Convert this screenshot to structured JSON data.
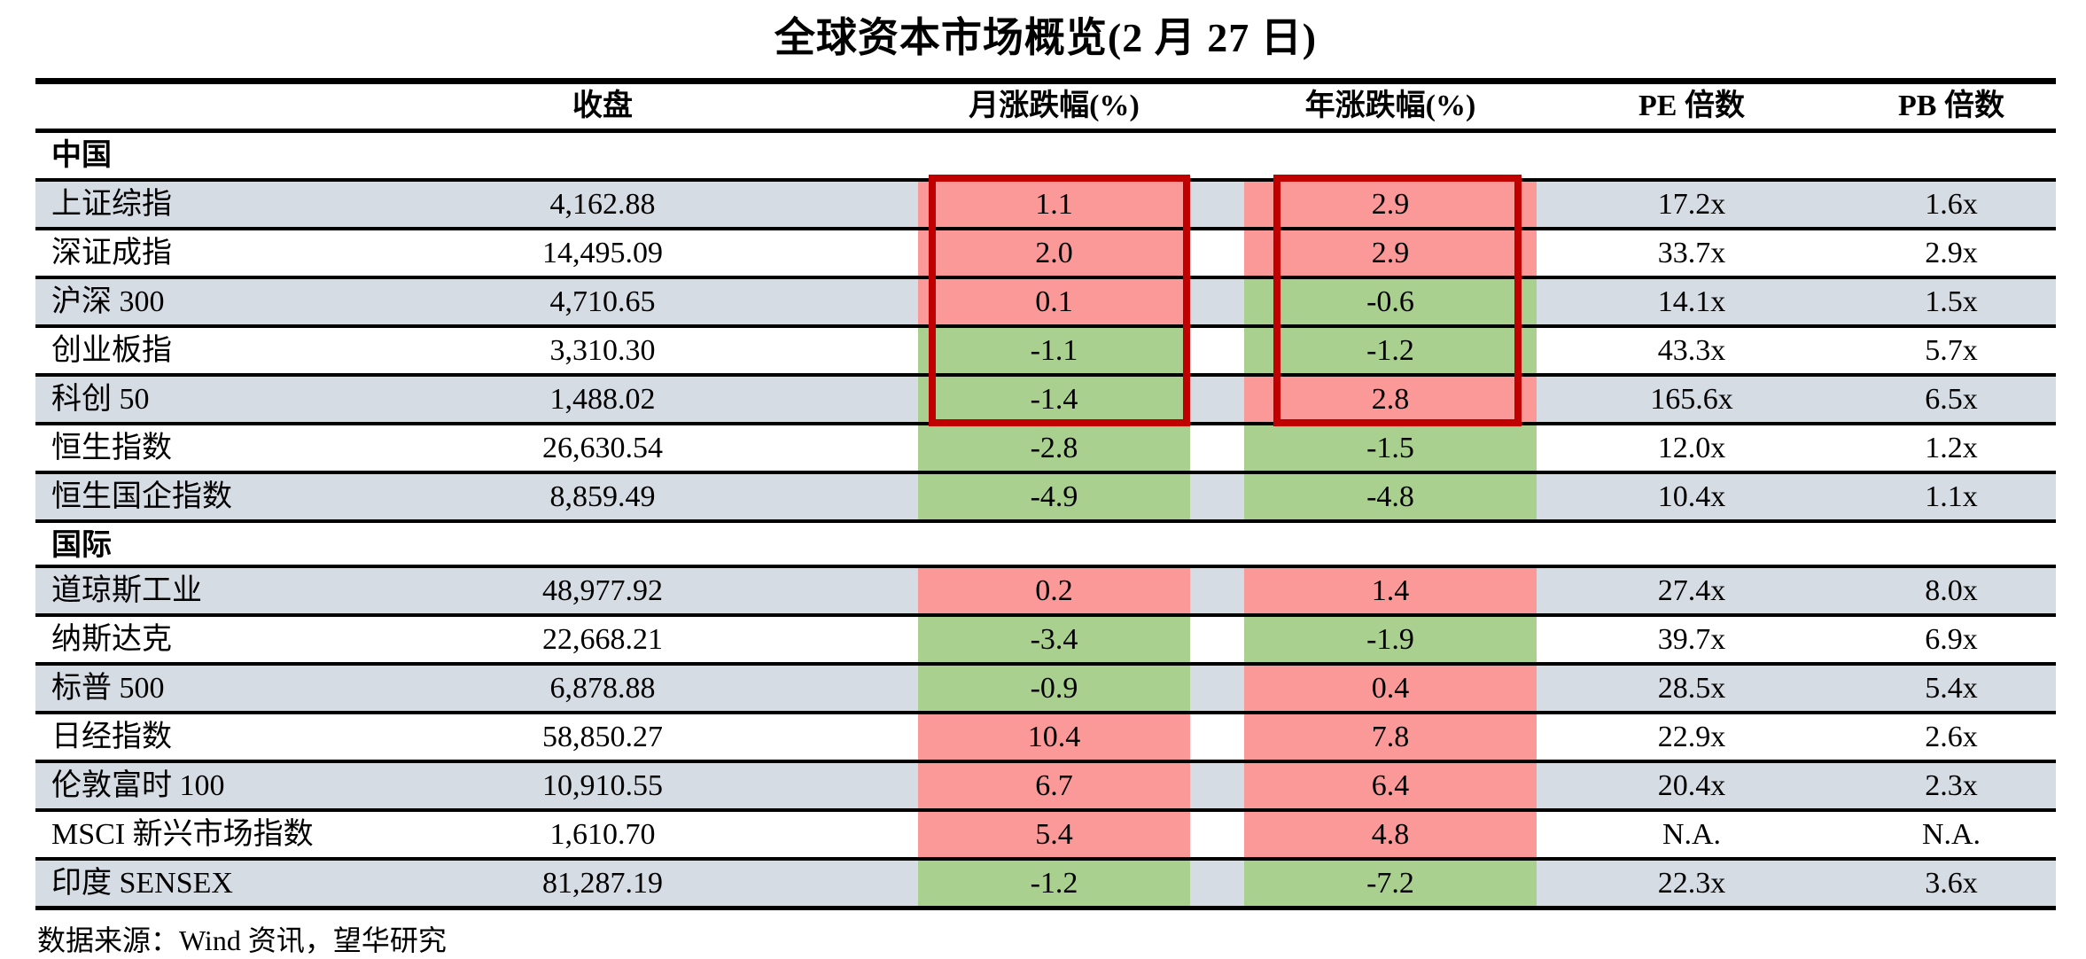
{
  "title": "全球资本市场概览(2 月 27 日)",
  "columns": {
    "close": "收盘",
    "monthly": "月涨跌幅(%)",
    "yearly": "年涨跌幅(%)",
    "pe": "PE 倍数",
    "pb": "PB 倍数"
  },
  "sections": [
    {
      "label": "中国",
      "rows": [
        {
          "name": "上证综指",
          "close": "4,162.88",
          "monthly": "1.1",
          "yearly": "2.9",
          "pe": "17.2x",
          "pb": "1.6x"
        },
        {
          "name": "深证成指",
          "close": "14,495.09",
          "monthly": "2.0",
          "yearly": "2.9",
          "pe": "33.7x",
          "pb": "2.9x"
        },
        {
          "name": "沪深 300",
          "close": "4,710.65",
          "monthly": "0.1",
          "yearly": "-0.6",
          "pe": "14.1x",
          "pb": "1.5x"
        },
        {
          "name": "创业板指",
          "close": "3,310.30",
          "monthly": "-1.1",
          "yearly": "-1.2",
          "pe": "43.3x",
          "pb": "5.7x"
        },
        {
          "name": "科创 50",
          "close": "1,488.02",
          "monthly": "-1.4",
          "yearly": "2.8",
          "pe": "165.6x",
          "pb": "6.5x"
        },
        {
          "name": "恒生指数",
          "close": "26,630.54",
          "monthly": "-2.8",
          "yearly": "-1.5",
          "pe": "12.0x",
          "pb": "1.2x"
        },
        {
          "name": "恒生国企指数",
          "close": "8,859.49",
          "monthly": "-4.9",
          "yearly": "-4.8",
          "pe": "10.4x",
          "pb": "1.1x"
        }
      ]
    },
    {
      "label": "国际",
      "rows": [
        {
          "name": "道琼斯工业",
          "close": "48,977.92",
          "monthly": "0.2",
          "yearly": "1.4",
          "pe": "27.4x",
          "pb": "8.0x"
        },
        {
          "name": "纳斯达克",
          "close": "22,668.21",
          "monthly": "-3.4",
          "yearly": "-1.9",
          "pe": "39.7x",
          "pb": "6.9x"
        },
        {
          "name": "标普 500",
          "close": "6,878.88",
          "monthly": "-0.9",
          "yearly": "0.4",
          "pe": "28.5x",
          "pb": "5.4x"
        },
        {
          "name": "日经指数",
          "close": "58,850.27",
          "monthly": "10.4",
          "yearly": "7.8",
          "pe": "22.9x",
          "pb": "2.6x"
        },
        {
          "name": "伦敦富时 100",
          "close": "10,910.55",
          "monthly": "6.7",
          "yearly": "6.4",
          "pe": "20.4x",
          "pb": "2.3x"
        },
        {
          "name": "MSCI 新兴市场指数",
          "close": "1,610.70",
          "monthly": "5.4",
          "yearly": "4.8",
          "pe": "N.A.",
          "pb": "N.A."
        },
        {
          "name": "印度 SENSEX",
          "close": "81,287.19",
          "monthly": "-1.2",
          "yearly": "-7.2",
          "pe": "22.3x",
          "pb": "3.6x"
        }
      ]
    }
  ],
  "source": "数据来源：Wind 资讯，望华研究",
  "colors": {
    "positive_fill": "#FB9898",
    "negative_fill": "#A9D08E",
    "row_stripe": "#D6DCE4",
    "highlight_border": "#C00000"
  }
}
